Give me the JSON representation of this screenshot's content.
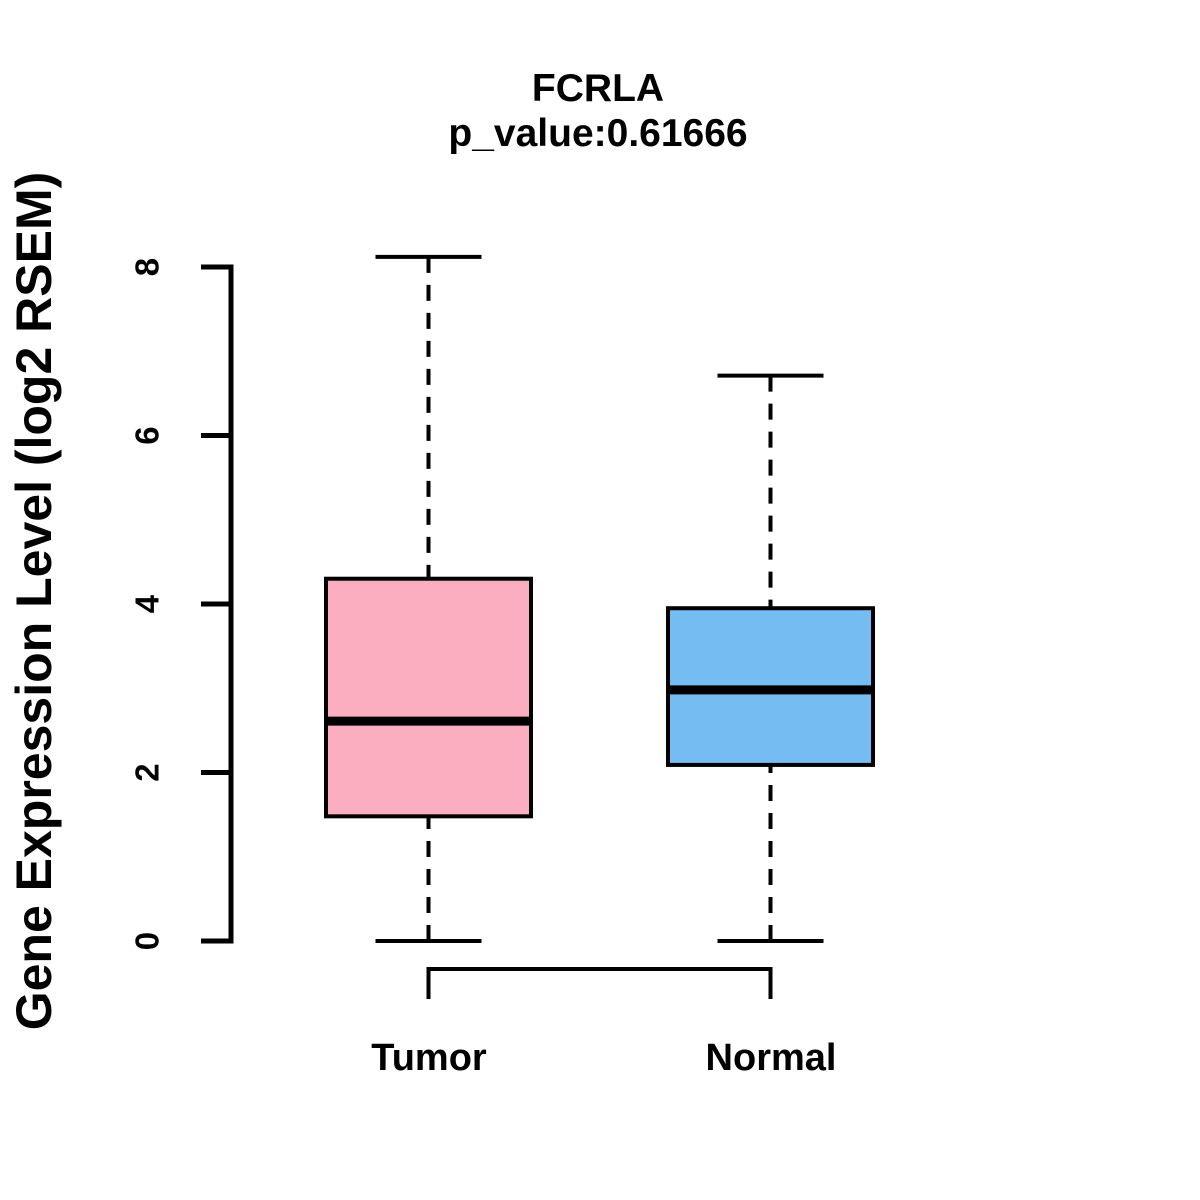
{
  "header": {
    "title": "FCRLA",
    "subtitle": "p_value:0.61666"
  },
  "axes": {
    "y_label": "Gene Expression Level (log2 RSEM)"
  },
  "colors": {
    "tumor_fill": "#FCAEC1",
    "normal_fill": "#74BCF2",
    "line": "#000000",
    "background": "#FFFFFF"
  },
  "chart_data": {
    "type": "boxplot",
    "title": "FCRLA",
    "subtitle": "p_value:0.61666",
    "ylabel": "Gene Expression Level (log2 RSEM)",
    "xlabel": "",
    "categories": [
      "Tumor",
      "Normal"
    ],
    "ylim": [
      0,
      8
    ],
    "yticks": [
      0,
      2,
      4,
      6,
      8
    ],
    "grid": false,
    "legend": "none",
    "groups": [
      {
        "name": "Tumor",
        "fill": "#FCAEC1",
        "whisker_low": 0.0,
        "q1": 1.48,
        "median": 2.61,
        "q3": 4.3,
        "whisker_high": 8.12,
        "outliers": []
      },
      {
        "name": "Normal",
        "fill": "#74BCF2",
        "whisker_low": 0.0,
        "q1": 2.09,
        "median": 2.98,
        "q3": 3.95,
        "whisker_high": 6.71,
        "outliers": []
      }
    ]
  }
}
